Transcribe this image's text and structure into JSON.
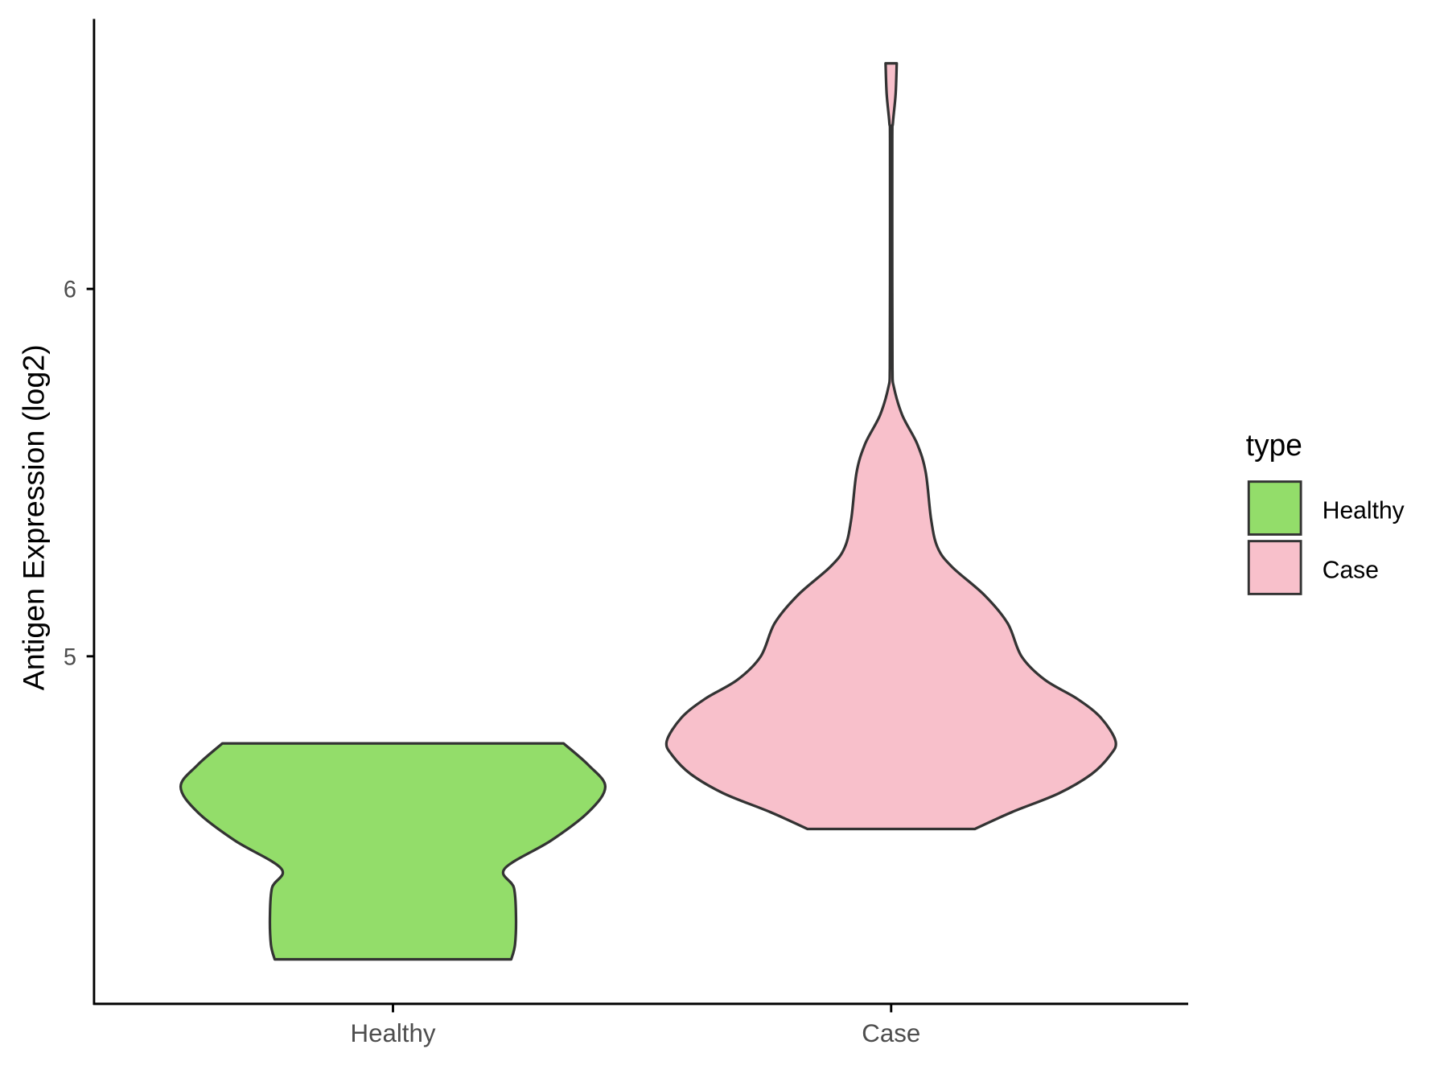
{
  "chart_data": {
    "type": "violin",
    "title": "",
    "xlabel": "",
    "ylabel": "Antigen Expression (log2)",
    "ylim": [
      4.054,
      6.735
    ],
    "yticks": [
      5,
      6
    ],
    "ytick_labels": [
      "5",
      "6"
    ],
    "categories": [
      "Healthy",
      "Case"
    ],
    "grid": false,
    "legend": {
      "title": "type",
      "placement": "right",
      "entries": [
        "Healthy",
        "Case"
      ]
    },
    "colors": {
      "Healthy": "#93DD6A",
      "Case": "#F8C0CB",
      "outline": "#333333"
    },
    "series": [
      {
        "name": "Healthy",
        "min": 4.175,
        "max": 4.763,
        "density_profile": [
          [
            4.175,
            0.527
          ],
          [
            4.216,
            0.544
          ],
          [
            4.293,
            0.548
          ],
          [
            4.37,
            0.539
          ],
          [
            4.422,
            0.498
          ],
          [
            4.499,
            0.706
          ],
          [
            4.576,
            0.871
          ],
          [
            4.645,
            0.946
          ],
          [
            4.704,
            0.871
          ],
          [
            4.763,
            0.76
          ]
        ]
      },
      {
        "name": "Case",
        "min": 4.53,
        "max": 6.614,
        "density_profile": [
          [
            4.53,
            0.373
          ],
          [
            4.576,
            0.539
          ],
          [
            4.627,
            0.747
          ],
          [
            4.679,
            0.892
          ],
          [
            4.73,
            0.975
          ],
          [
            4.769,
            1.0
          ],
          [
            4.833,
            0.934
          ],
          [
            4.884,
            0.83
          ],
          [
            4.936,
            0.685
          ],
          [
            5.0,
            0.581
          ],
          [
            5.09,
            0.519
          ],
          [
            5.167,
            0.415
          ],
          [
            5.244,
            0.27
          ],
          [
            5.296,
            0.207
          ],
          [
            5.373,
            0.178
          ],
          [
            5.501,
            0.154
          ],
          [
            5.578,
            0.116
          ],
          [
            5.656,
            0.05
          ],
          [
            5.733,
            0.012
          ],
          [
            5.784,
            0.006
          ],
          [
            6.015,
            0.005
          ],
          [
            6.401,
            0.005
          ],
          [
            6.452,
            0.008
          ],
          [
            6.53,
            0.02
          ],
          [
            6.614,
            0.025
          ]
        ]
      }
    ]
  }
}
